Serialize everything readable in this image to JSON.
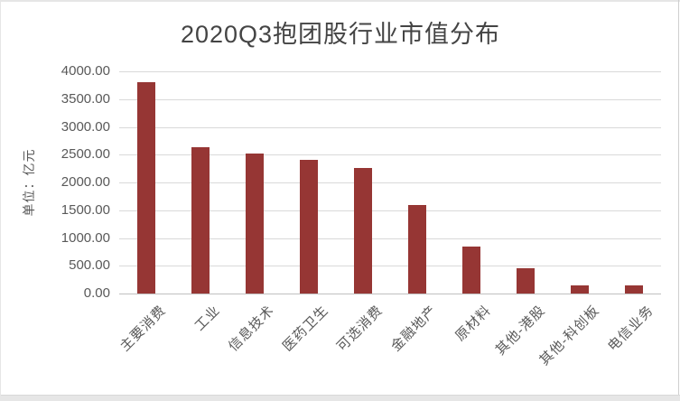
{
  "window": {
    "background": "#ffffff",
    "edge_color": "#e6e6e6"
  },
  "chart_data": {
    "type": "bar",
    "title": "2020Q3抱团股行业市值分布",
    "xlabel": "",
    "ylabel": "单位：亿元",
    "categories": [
      "主要消费",
      "工业",
      "信息技术",
      "医药卫生",
      "可选消费",
      "金融地产",
      "原材料",
      "其他-港股",
      "其他-科创板",
      "电信业务"
    ],
    "values": [
      3800,
      2630,
      2520,
      2400,
      2260,
      1590,
      850,
      460,
      140,
      140
    ],
    "ylim": [
      0,
      4000
    ],
    "ytick_step": 500,
    "y_ticks": [
      "0.00",
      "500.00",
      "1000.00",
      "1500.00",
      "2000.00",
      "2500.00",
      "3000.00",
      "3500.00",
      "4000.00"
    ],
    "grid": true,
    "legend": false,
    "x_label_rotation_deg": -45,
    "colors": {
      "bar": "#963634",
      "gridline": "#d9d9d9",
      "axis_line": "#c0c0c0",
      "title_text": "#444444",
      "label_text": "#595959"
    }
  }
}
